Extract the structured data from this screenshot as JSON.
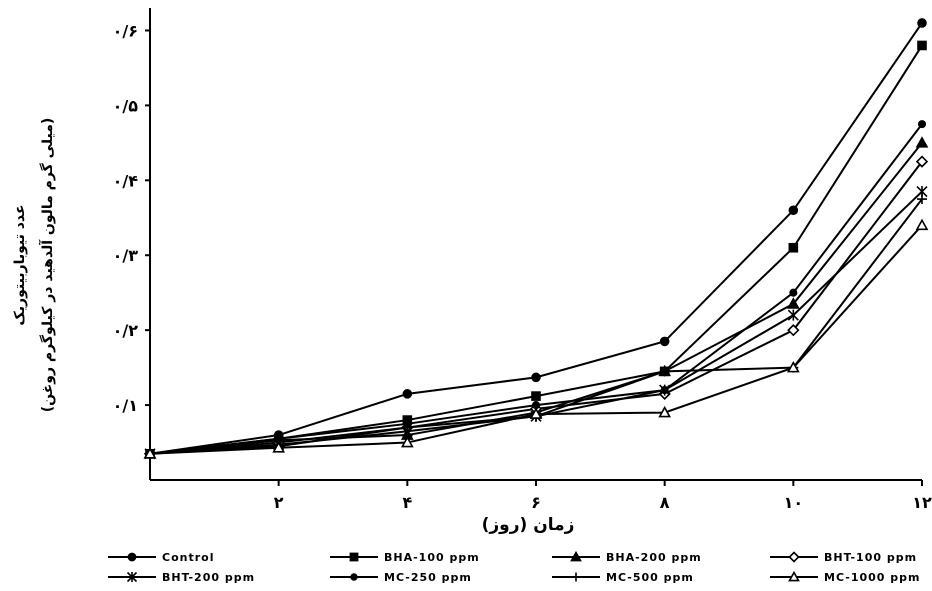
{
  "chart_data": {
    "type": "line",
    "xlabel": "زمان (روز)",
    "ylabel_line1": "عدد تیوباربیتوریک",
    "ylabel_line2": "(میلی گرم مالون آلدهید در کیلوگرم روغن)",
    "x": [
      0,
      2,
      4,
      6,
      8,
      10,
      12
    ],
    "x_tick_labels": [
      "۲",
      "۴",
      "۶",
      "۸",
      "۱۰",
      "۱۲"
    ],
    "x_tick_values": [
      2,
      4,
      6,
      8,
      10,
      12
    ],
    "y_tick_labels": [
      "۰/۱",
      "۰/۲",
      "۰/۳",
      "۰/۴",
      "۰/۵",
      "۰/۶"
    ],
    "y_tick_values": [
      0.1,
      0.2,
      0.3,
      0.4,
      0.5,
      0.6
    ],
    "xlim": [
      0,
      12
    ],
    "ylim": [
      0,
      0.63
    ],
    "grid": false,
    "legend_position": "bottom",
    "series": [
      {
        "name": "Control",
        "marker": "circle",
        "values": [
          0.035,
          0.06,
          0.115,
          0.137,
          0.185,
          0.36,
          0.61
        ]
      },
      {
        "name": "BHA-100 ppm",
        "marker": "square",
        "values": [
          0.035,
          0.055,
          0.08,
          0.112,
          0.145,
          0.31,
          0.58
        ]
      },
      {
        "name": "BHA-200 ppm",
        "marker": "triangle",
        "values": [
          0.035,
          0.053,
          0.06,
          0.09,
          0.145,
          0.235,
          0.45
        ]
      },
      {
        "name": "BHT-100 ppm",
        "marker": "diamond-open",
        "values": [
          0.035,
          0.05,
          0.07,
          0.095,
          0.115,
          0.2,
          0.425
        ]
      },
      {
        "name": "BHT-200 ppm",
        "marker": "star",
        "values": [
          0.035,
          0.047,
          0.065,
          0.085,
          0.12,
          0.22,
          0.385
        ]
      },
      {
        "name": "MC-250 ppm",
        "marker": "dot",
        "values": [
          0.035,
          0.055,
          0.075,
          0.1,
          0.12,
          0.25,
          0.475
        ]
      },
      {
        "name": "MC-500 ppm",
        "marker": "plus",
        "values": [
          0.035,
          0.045,
          0.07,
          0.085,
          0.145,
          0.15,
          0.375
        ]
      },
      {
        "name": "MC-1000 ppm",
        "marker": "triangle-open",
        "values": [
          0.035,
          0.043,
          0.05,
          0.088,
          0.09,
          0.15,
          0.34
        ]
      }
    ]
  }
}
